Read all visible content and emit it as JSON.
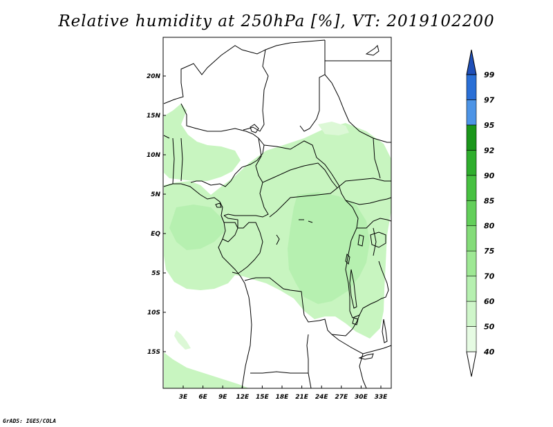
{
  "title": "Relative humidity at 250hPa [%], VT: 2019102200",
  "credit": "GrADS: IGES/COLA",
  "map": {
    "lat_labels": [
      "20N",
      "15N",
      "10N",
      "5N",
      "EQ",
      "5S",
      "10S",
      "15S"
    ],
    "lon_labels": [
      "3E",
      "6E",
      "9E",
      "12E",
      "15E",
      "18E",
      "21E",
      "24E",
      "27E",
      "30E",
      "33E"
    ]
  },
  "colorbar": {
    "levels": [
      "40",
      "50",
      "60",
      "70",
      "75",
      "80",
      "85",
      "90",
      "92",
      "95",
      "97",
      "99"
    ],
    "colors": [
      "#ffffff",
      "#e6fbe3",
      "#cff6ca",
      "#b6f0b0",
      "#9ee894",
      "#84dc79",
      "#63cf5a",
      "#47c141",
      "#2fae2d",
      "#1a961a",
      "#4d94e6",
      "#2a6fd6",
      "#1f4fb8"
    ]
  },
  "colors": {
    "humid_light": "#c8f5c0",
    "humid_mid": "#b0ecaa"
  }
}
